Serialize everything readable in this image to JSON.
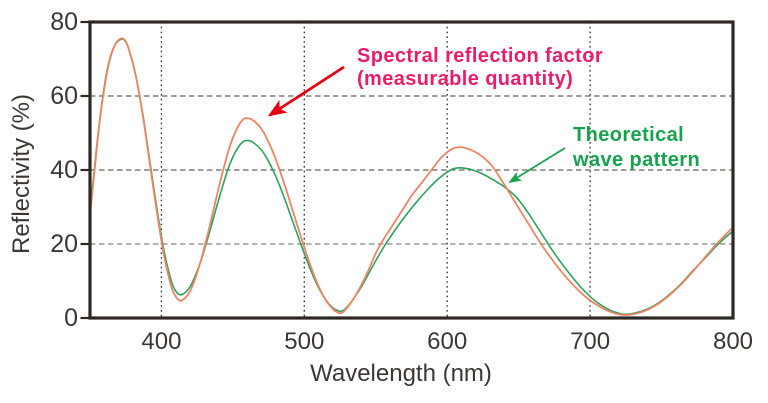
{
  "colors": {
    "background": "#ffffff",
    "axis": "#2e2824",
    "text": "#3d3733",
    "measured_curve": "#ef8465",
    "theoretical_curve": "#2aa45c",
    "measured_label": "#ea1d6d",
    "measured_arrow": "#e60012",
    "theoretical_label": "#17a24e",
    "grid_dark": "#6b6560",
    "grid_light": "#a9a9a9",
    "grid_vertical": "#3c3835"
  },
  "chart_data": {
    "type": "line",
    "title": "",
    "xlabel": "Wavelength (nm)",
    "ylabel": "Reflectivity (%)",
    "xlim": [
      350,
      800
    ],
    "ylim": [
      0,
      80
    ],
    "x_ticks": [
      400,
      500,
      600,
      700,
      800
    ],
    "y_ticks": [
      0,
      20,
      40,
      60,
      80
    ],
    "grid": {
      "vertical_at": [
        400,
        500,
        600,
        700
      ],
      "horizontal": [
        {
          "value": 20,
          "shade": "light"
        },
        {
          "value": 40,
          "shade": "dark"
        },
        {
          "value": 60,
          "shade": "dark"
        }
      ]
    },
    "legend_position": "none",
    "series": [
      {
        "name": "Theoretical wave pattern",
        "color": "#2aa45c",
        "points": [
          [
            350,
            29
          ],
          [
            353,
            40
          ],
          [
            356,
            51
          ],
          [
            359,
            60
          ],
          [
            362,
            67
          ],
          [
            365,
            71.5
          ],
          [
            368,
            74.1
          ],
          [
            371,
            75.2
          ],
          [
            374,
            75.1
          ],
          [
            377,
            72.8
          ],
          [
            382,
            65.6
          ],
          [
            387,
            54.9
          ],
          [
            392,
            42.1
          ],
          [
            397,
            29.1
          ],
          [
            402,
            17.8
          ],
          [
            407,
            9.9
          ],
          [
            410,
            7.3
          ],
          [
            413,
            6.3
          ],
          [
            416,
            6.7
          ],
          [
            420,
            8.4
          ],
          [
            424,
            11.7
          ],
          [
            428,
            15.9
          ],
          [
            433,
            22.3
          ],
          [
            438,
            29.2
          ],
          [
            443,
            35.9
          ],
          [
            448,
            41.7
          ],
          [
            453,
            45.7
          ],
          [
            457,
            47.6
          ],
          [
            460,
            48
          ],
          [
            464,
            47.5
          ],
          [
            470,
            45.4
          ],
          [
            475,
            42.3
          ],
          [
            480,
            38.3
          ],
          [
            485,
            33.5
          ],
          [
            490,
            28.2
          ],
          [
            495,
            22.7
          ],
          [
            500,
            17.4
          ],
          [
            505,
            12.4
          ],
          [
            510,
            8.2
          ],
          [
            515,
            4.9
          ],
          [
            520,
            2.7
          ],
          [
            523,
            2.1
          ],
          [
            526,
            1.8
          ],
          [
            530,
            3
          ],
          [
            535,
            5.5
          ],
          [
            540,
            8.5
          ],
          [
            545,
            12
          ],
          [
            550,
            15.5
          ],
          [
            555,
            18.8
          ],
          [
            560,
            21.8
          ],
          [
            565,
            24.6
          ],
          [
            570,
            27.2
          ],
          [
            575,
            29.7
          ],
          [
            580,
            32
          ],
          [
            585,
            34.2
          ],
          [
            590,
            36.2
          ],
          [
            595,
            38
          ],
          [
            600,
            39.4
          ],
          [
            604,
            40.3
          ],
          [
            608,
            40.6
          ],
          [
            612,
            40.5
          ],
          [
            618,
            40
          ],
          [
            625,
            38.9
          ],
          [
            632,
            37.4
          ],
          [
            640,
            35.4
          ],
          [
            648,
            32.8
          ],
          [
            656,
            28.8
          ],
          [
            664,
            24
          ],
          [
            672,
            19.2
          ],
          [
            680,
            14.8
          ],
          [
            688,
            10.8
          ],
          [
            696,
            7.3
          ],
          [
            704,
            4.5
          ],
          [
            712,
            2.5
          ],
          [
            718,
            1.5
          ],
          [
            725,
            1
          ],
          [
            732,
            1.4
          ],
          [
            740,
            2.4
          ],
          [
            748,
            4.1
          ],
          [
            756,
            6.5
          ],
          [
            764,
            9.4
          ],
          [
            772,
            12.8
          ],
          [
            780,
            16
          ],
          [
            788,
            19.3
          ],
          [
            794,
            21.5
          ],
          [
            800,
            23.5
          ]
        ]
      },
      {
        "name": "Spectral reflection factor (measurable quantity)",
        "color": "#ef8465",
        "points": [
          [
            350,
            28
          ],
          [
            353,
            39
          ],
          [
            356,
            50.5
          ],
          [
            359,
            59.5
          ],
          [
            362,
            66.5
          ],
          [
            365,
            71.3
          ],
          [
            368,
            74.2
          ],
          [
            371,
            75.4
          ],
          [
            374,
            75.3
          ],
          [
            377,
            72.9
          ],
          [
            382,
            65.6
          ],
          [
            387,
            54.6
          ],
          [
            392,
            41.4
          ],
          [
            397,
            28.1
          ],
          [
            402,
            16.5
          ],
          [
            407,
            8.4
          ],
          [
            410,
            5.8
          ],
          [
            413,
            4.7
          ],
          [
            416,
            5.2
          ],
          [
            420,
            7.2
          ],
          [
            424,
            11
          ],
          [
            428,
            16.1
          ],
          [
            433,
            23.6
          ],
          [
            438,
            31.8
          ],
          [
            443,
            39.7
          ],
          [
            448,
            46.5
          ],
          [
            453,
            51.3
          ],
          [
            457,
            53.6
          ],
          [
            460,
            54
          ],
          [
            464,
            53.5
          ],
          [
            470,
            51.1
          ],
          [
            475,
            47.5
          ],
          [
            480,
            42.9
          ],
          [
            485,
            37.4
          ],
          [
            490,
            31.4
          ],
          [
            495,
            25.1
          ],
          [
            500,
            19.1
          ],
          [
            505,
            13.4
          ],
          [
            510,
            8.6
          ],
          [
            515,
            4.8
          ],
          [
            520,
            2.4
          ],
          [
            523,
            1.6
          ],
          [
            526,
            1.3
          ],
          [
            530,
            2.8
          ],
          [
            535,
            5.5
          ],
          [
            540,
            9
          ],
          [
            545,
            13
          ],
          [
            550,
            17.5
          ],
          [
            555,
            21
          ],
          [
            560,
            24
          ],
          [
            565,
            27
          ],
          [
            570,
            30
          ],
          [
            575,
            33
          ],
          [
            580,
            35.5
          ],
          [
            585,
            38
          ],
          [
            590,
            40.5
          ],
          [
            595,
            43
          ],
          [
            600,
            44.8
          ],
          [
            604,
            45.8
          ],
          [
            608,
            46.2
          ],
          [
            612,
            46
          ],
          [
            618,
            45.2
          ],
          [
            625,
            43.5
          ],
          [
            632,
            40.8
          ],
          [
            640,
            36
          ],
          [
            648,
            31
          ],
          [
            656,
            26
          ],
          [
            664,
            21
          ],
          [
            672,
            16.5
          ],
          [
            680,
            12.5
          ],
          [
            688,
            9
          ],
          [
            696,
            6
          ],
          [
            704,
            3.7
          ],
          [
            712,
            2
          ],
          [
            718,
            1.2
          ],
          [
            725,
            0.8
          ],
          [
            732,
            1.2
          ],
          [
            740,
            2.2
          ],
          [
            748,
            3.9
          ],
          [
            756,
            6.3
          ],
          [
            764,
            9.2
          ],
          [
            772,
            12.6
          ],
          [
            780,
            16.2
          ],
          [
            788,
            19.8
          ],
          [
            794,
            22.2
          ],
          [
            800,
            24.5
          ]
        ]
      }
    ],
    "annotations": [
      {
        "id": "measured",
        "lines": [
          "Spectral reflection factor",
          "(measurable quantity)"
        ],
        "color": "#ea1d6d",
        "arrow_color": "#e60012"
      },
      {
        "id": "theoretical",
        "lines": [
          "Theoretical",
          "wave pattern"
        ],
        "color": "#17a24e",
        "arrow_color": "#17a24e"
      }
    ]
  }
}
